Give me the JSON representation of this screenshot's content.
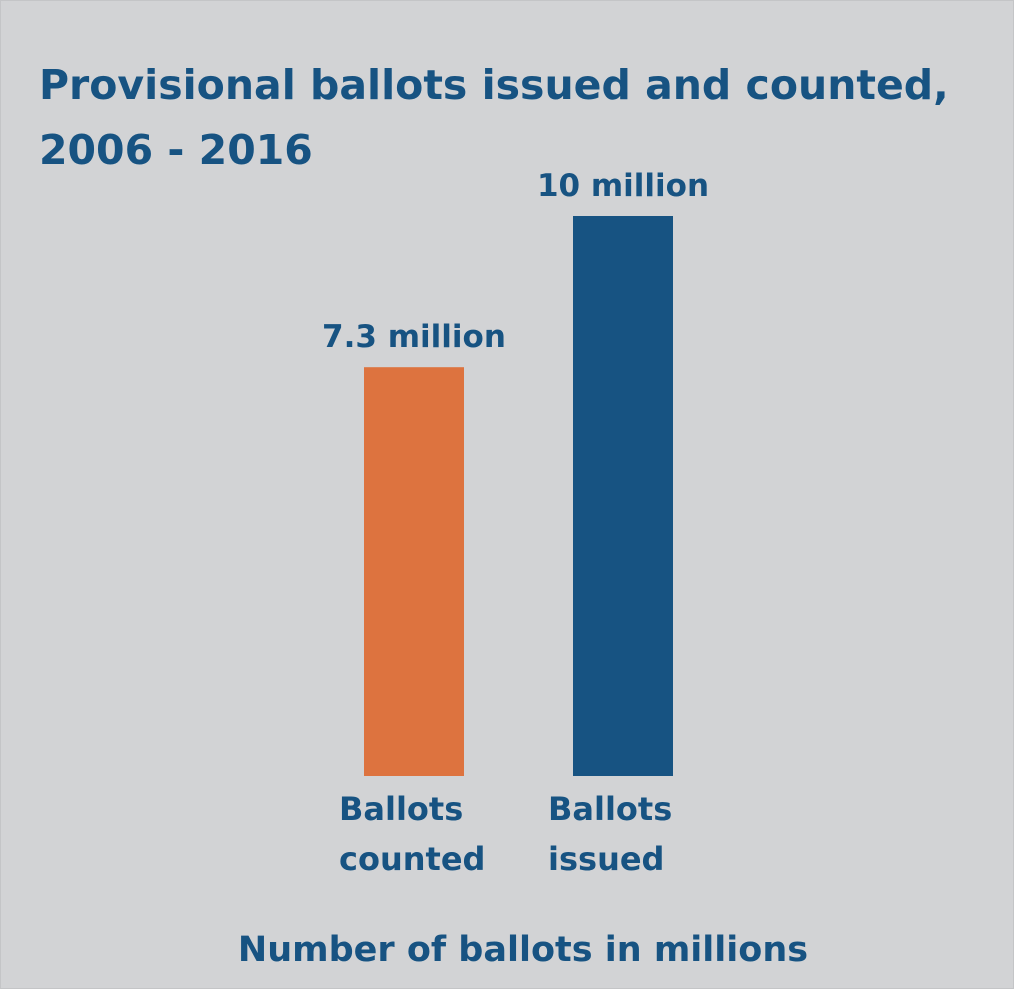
{
  "chart_data": {
    "type": "bar",
    "title_lines": [
      "Provisional ballots issued and counted,",
      "2006 - 2016"
    ],
    "categories": [
      [
        "Ballots",
        "counted"
      ],
      [
        "Ballots",
        "issued"
      ]
    ],
    "values": [
      7.3,
      10
    ],
    "value_labels": [
      "7.3 million",
      "10 million"
    ],
    "bar_colors": [
      "#dd733f",
      "#175382"
    ],
    "xlabel": "Number of ballots in millions",
    "ylabel": "",
    "ylim": [
      0,
      10
    ],
    "grid": false,
    "legend": "none"
  },
  "colors": {
    "background": "#d2d3d5",
    "text": "#175382"
  }
}
